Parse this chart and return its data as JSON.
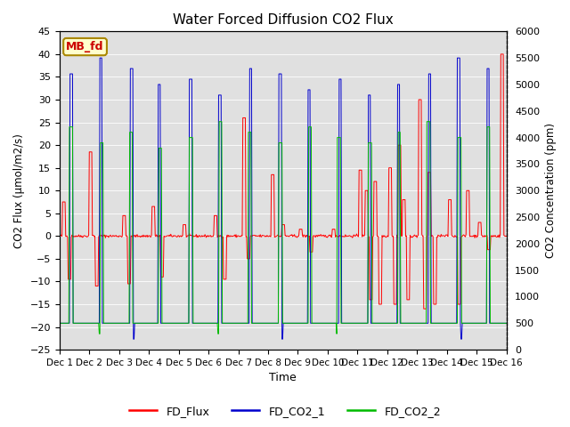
{
  "title": "Water Forced Diffusion CO2 Flux",
  "xlabel": "Time",
  "ylabel_left": "CO2 Flux (μmol/m2/s)",
  "ylabel_right": "CO2 Concentration (ppm)",
  "ylim_left": [
    -25,
    45
  ],
  "ylim_right": [
    0,
    6000
  ],
  "annotation_text": "MB_fd",
  "annotation_color": "#cc0000",
  "annotation_bg": "#ffffcc",
  "annotation_border": "#aa8800",
  "legend_entries": [
    "FD_Flux",
    "FD_CO2_1",
    "FD_CO2_2"
  ],
  "line_colors": [
    "#ff0000",
    "#0000cd",
    "#00bb00"
  ],
  "background_color": "#e0e0e0",
  "n_days": 15,
  "seed": 42
}
